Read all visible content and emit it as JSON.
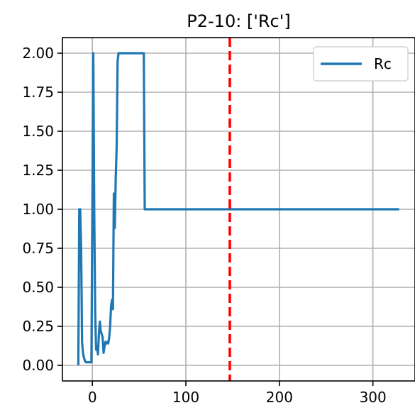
{
  "chart_data": {
    "type": "line",
    "title": "P2-10: ['Rc']",
    "xlabel": "",
    "ylabel": "",
    "xlim": [
      -32,
      345
    ],
    "ylim": [
      -0.1,
      2.1
    ],
    "xticks": [
      0,
      100,
      200,
      300
    ],
    "xtick_labels": [
      "0",
      "100",
      "200",
      "300"
    ],
    "yticks": [
      0,
      0.25,
      0.5,
      0.75,
      1.0,
      1.25,
      1.5,
      1.75,
      2.0
    ],
    "ytick_labels": [
      "0.00",
      "0.25",
      "0.50",
      "0.75",
      "1.00",
      "1.25",
      "1.50",
      "1.75",
      "2.00"
    ],
    "grid": true,
    "legend_position": "top-right",
    "series": [
      {
        "name": "Rc",
        "color": "#1f77b4",
        "x": [
          -15,
          -14,
          -13,
          -12,
          -11,
          -10,
          -9,
          -8,
          -7,
          -6,
          -4,
          -2,
          -1,
          0,
          1,
          2,
          3,
          4,
          5,
          6,
          7,
          8,
          9,
          10,
          11,
          12,
          13,
          14,
          15,
          16,
          17,
          18,
          19,
          20,
          21,
          22,
          23,
          24,
          25,
          26,
          27,
          28,
          29,
          30,
          31,
          32,
          33,
          34,
          35,
          36,
          40,
          45,
          50,
          55,
          56,
          60,
          100,
          150,
          200,
          250,
          300,
          328
        ],
        "y": [
          0.0,
          1.0,
          1.0,
          0.75,
          0.15,
          0.08,
          0.05,
          0.03,
          0.02,
          0.02,
          0.02,
          0.02,
          0.02,
          1.0,
          2.0,
          1.0,
          0.35,
          0.1,
          0.12,
          0.07,
          0.2,
          0.28,
          0.22,
          0.2,
          0.18,
          0.08,
          0.12,
          0.15,
          0.14,
          0.15,
          0.14,
          0.18,
          0.25,
          0.38,
          0.42,
          0.36,
          1.1,
          0.88,
          1.2,
          1.4,
          1.95,
          2.0,
          2.0,
          2.0,
          2.0,
          2.0,
          2.0,
          2.0,
          2.0,
          2.0,
          2.0,
          2.0,
          2.0,
          2.0,
          1.0,
          1.0,
          1.0,
          1.0,
          1.0,
          1.0,
          1.0,
          1.0
        ]
      }
    ],
    "vline": {
      "x": 147,
      "color": "#ff0000",
      "style": "dashed"
    }
  }
}
